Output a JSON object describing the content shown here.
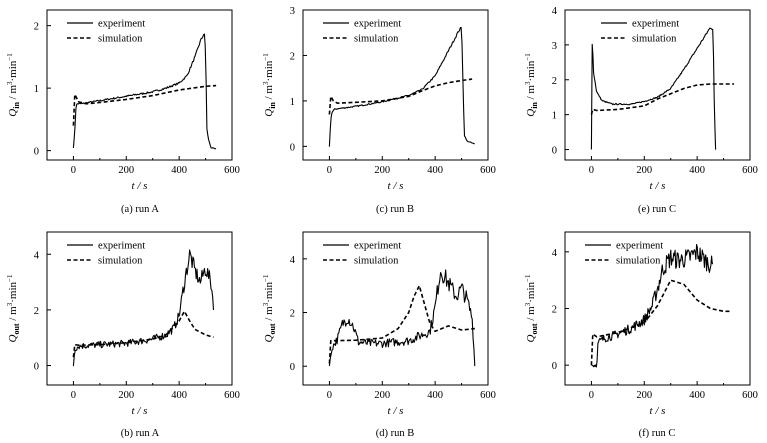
{
  "figure": {
    "legend": {
      "experiment": "experiment",
      "simulation": "simulation"
    },
    "x_axis_label": "t / s",
    "y_axis_label_in": "Q_in / m³·min⁻¹",
    "y_axis_label_out": "Q_out / m³·min⁻¹"
  },
  "chart_data": [
    {
      "id": "a",
      "type": "line",
      "caption": "(a) run A",
      "quantity": "in",
      "ylabel": "Q_in / m³·min⁻¹",
      "xlabel": "t / s",
      "xlim": [
        -100,
        600
      ],
      "ylim": [
        -0.15,
        2.25
      ],
      "xticks": [
        0,
        200,
        400,
        600
      ],
      "yticks": [
        0,
        1,
        2
      ],
      "legend_position": "top-left",
      "series": [
        {
          "name": "experiment",
          "style": "solid",
          "noise": 0.02,
          "x": [
            0,
            5,
            10,
            15,
            30,
            100,
            200,
            300,
            350,
            400,
            430,
            460,
            480,
            495,
            500,
            505,
            510,
            520,
            540
          ],
          "y": [
            0.05,
            0.3,
            0.72,
            0.75,
            0.75,
            0.8,
            0.87,
            0.94,
            1.0,
            1.08,
            1.2,
            1.5,
            1.75,
            1.88,
            1.6,
            0.35,
            0.2,
            0.05,
            0.02
          ]
        },
        {
          "name": "simulation",
          "style": "dashed",
          "noise": 0,
          "x": [
            0,
            5,
            20,
            50,
            100,
            200,
            300,
            400,
            450,
            500,
            540
          ],
          "y": [
            0.4,
            0.9,
            0.78,
            0.75,
            0.77,
            0.82,
            0.88,
            0.97,
            1.0,
            1.03,
            1.04
          ]
        }
      ]
    },
    {
      "id": "c",
      "type": "line",
      "caption": "(c) run B",
      "quantity": "in",
      "ylabel": "Q_in / m³·min⁻¹",
      "xlabel": "t / s",
      "xlim": [
        -100,
        600
      ],
      "ylim": [
        -0.3,
        3.0
      ],
      "xticks": [
        0,
        200,
        400,
        600
      ],
      "yticks": [
        0,
        1,
        2,
        3
      ],
      "legend_position": "top-left",
      "series": [
        {
          "name": "experiment",
          "style": "solid",
          "noise": 0.02,
          "x": [
            0,
            5,
            10,
            20,
            100,
            200,
            300,
            350,
            400,
            450,
            490,
            500,
            505,
            510,
            520,
            550
          ],
          "y": [
            0.0,
            0.6,
            0.75,
            0.82,
            0.88,
            0.98,
            1.12,
            1.25,
            1.55,
            2.1,
            2.55,
            2.62,
            1.5,
            0.25,
            0.12,
            0.05
          ]
        },
        {
          "name": "simulation",
          "style": "dashed",
          "noise": 0,
          "x": [
            0,
            5,
            15,
            30,
            100,
            200,
            300,
            350,
            400,
            450,
            500,
            540
          ],
          "y": [
            0.7,
            1.1,
            1.0,
            0.95,
            0.97,
            1.0,
            1.1,
            1.22,
            1.33,
            1.4,
            1.45,
            1.48
          ]
        }
      ]
    },
    {
      "id": "e",
      "type": "line",
      "caption": "(e) run C",
      "quantity": "in",
      "ylabel": "Q_in / m³·min⁻¹",
      "xlabel": "t / s",
      "xlim": [
        -100,
        600
      ],
      "ylim": [
        -0.3,
        4.0
      ],
      "xticks": [
        0,
        200,
        400,
        600
      ],
      "yticks": [
        0,
        1,
        2,
        3,
        4
      ],
      "legend_position": "top-center",
      "series": [
        {
          "name": "experiment",
          "style": "solid",
          "noise": 0.02,
          "x": [
            0,
            3,
            8,
            20,
            40,
            80,
            150,
            200,
            250,
            300,
            350,
            400,
            450,
            460,
            465,
            470
          ],
          "y": [
            0.0,
            3.3,
            2.2,
            1.65,
            1.4,
            1.3,
            1.3,
            1.38,
            1.5,
            1.75,
            2.3,
            2.9,
            3.5,
            3.45,
            1.2,
            0.0
          ]
        },
        {
          "name": "simulation",
          "style": "dashed",
          "noise": 0,
          "x": [
            0,
            5,
            20,
            100,
            200,
            250,
            300,
            350,
            400,
            450,
            500,
            540
          ],
          "y": [
            1.0,
            1.15,
            1.12,
            1.15,
            1.25,
            1.45,
            1.6,
            1.75,
            1.85,
            1.88,
            1.88,
            1.88
          ]
        }
      ]
    },
    {
      "id": "b",
      "type": "line",
      "caption": "(b) run A",
      "quantity": "out",
      "ylabel": "Q_out / m³·min⁻¹",
      "xlabel": "t / s",
      "xlim": [
        -100,
        600
      ],
      "ylim": [
        -0.7,
        4.8
      ],
      "xticks": [
        0,
        200,
        400,
        600
      ],
      "yticks": [
        0,
        2,
        4
      ],
      "legend_position": "top-left",
      "series": [
        {
          "name": "experiment",
          "style": "solid",
          "noise": 0.18,
          "x": [
            0,
            5,
            20,
            100,
            200,
            300,
            350,
            380,
            400,
            420,
            440,
            460,
            480,
            500,
            520,
            530
          ],
          "y": [
            0.0,
            0.6,
            0.7,
            0.75,
            0.8,
            0.95,
            1.1,
            1.35,
            1.8,
            3.0,
            4.0,
            3.4,
            3.0,
            3.5,
            3.0,
            2.2
          ]
        },
        {
          "name": "simulation",
          "style": "dashed",
          "noise": 0,
          "x": [
            0,
            5,
            20,
            100,
            200,
            300,
            350,
            400,
            420,
            440,
            460,
            500,
            530
          ],
          "y": [
            0.3,
            0.75,
            0.73,
            0.75,
            0.82,
            0.95,
            1.1,
            1.6,
            1.95,
            1.6,
            1.3,
            1.1,
            1.02
          ]
        }
      ]
    },
    {
      "id": "d",
      "type": "line",
      "caption": "(d) run B",
      "quantity": "out",
      "ylabel": "Q_out / m³·min⁻¹",
      "xlabel": "t / s",
      "xlim": [
        -100,
        600
      ],
      "ylim": [
        -0.7,
        5.0
      ],
      "xticks": [
        0,
        200,
        400,
        600
      ],
      "yticks": [
        0,
        2,
        4
      ],
      "legend_position": "top-left",
      "series": [
        {
          "name": "experiment",
          "style": "solid",
          "noise": 0.22,
          "x": [
            0,
            10,
            30,
            50,
            70,
            90,
            110,
            150,
            200,
            300,
            380,
            400,
            420,
            450,
            480,
            500,
            520,
            540,
            550
          ],
          "y": [
            0.0,
            0.7,
            1.0,
            1.6,
            1.8,
            1.5,
            0.9,
            0.85,
            0.85,
            0.95,
            1.3,
            2.2,
            3.6,
            3.1,
            2.6,
            2.9,
            2.5,
            1.8,
            0.1
          ]
        },
        {
          "name": "simulation",
          "style": "dashed",
          "noise": 0,
          "x": [
            0,
            5,
            20,
            100,
            200,
            260,
            300,
            320,
            340,
            360,
            380,
            400,
            450,
            500,
            550
          ],
          "y": [
            0.1,
            0.95,
            0.95,
            0.97,
            1.05,
            1.4,
            2.0,
            2.6,
            3.0,
            2.3,
            1.6,
            1.3,
            1.5,
            1.35,
            1.4
          ]
        }
      ]
    },
    {
      "id": "f",
      "type": "line",
      "caption": "(f) run C",
      "quantity": "out",
      "ylabel": "Q_out / m³·min⁻¹",
      "xlabel": "t / s",
      "xlim": [
        -100,
        600
      ],
      "ylim": [
        -0.7,
        4.7
      ],
      "xticks": [
        0,
        200,
        400,
        600
      ],
      "yticks": [
        0,
        2,
        4
      ],
      "legend_position": "top-left",
      "series": [
        {
          "name": "experiment",
          "style": "solid",
          "noise": 0.2,
          "x": [
            0,
            20,
            25,
            50,
            100,
            150,
            200,
            230,
            250,
            270,
            300,
            330,
            370,
            400,
            430,
            460
          ],
          "y": [
            0.0,
            0.0,
            0.8,
            0.95,
            1.1,
            1.3,
            1.6,
            2.1,
            2.7,
            3.4,
            3.8,
            3.7,
            3.8,
            4.0,
            3.7,
            3.5
          ]
        },
        {
          "name": "simulation",
          "style": "dashed",
          "noise": 0,
          "x": [
            0,
            5,
            20,
            100,
            200,
            250,
            300,
            350,
            400,
            450,
            500,
            530
          ],
          "y": [
            0.0,
            1.1,
            1.0,
            1.15,
            1.5,
            2.1,
            3.0,
            2.85,
            2.3,
            2.0,
            1.9,
            1.9
          ]
        }
      ]
    }
  ]
}
